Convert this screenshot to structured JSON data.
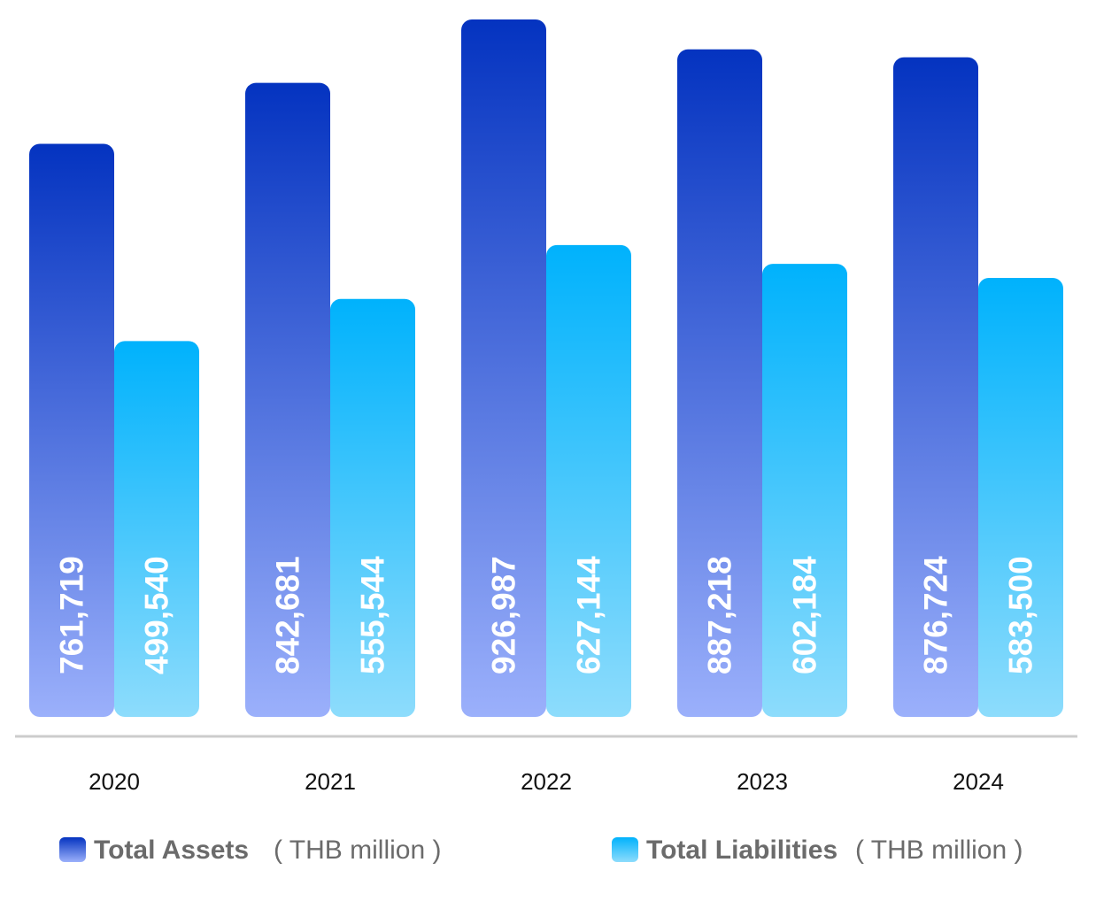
{
  "chart_data": {
    "type": "bar",
    "categories": [
      "2020",
      "2021",
      "2022",
      "2023",
      "2024"
    ],
    "series": [
      {
        "name": "Total Assets",
        "unit": "( THB million )",
        "values": [
          761719,
          842681,
          926987,
          887218,
          876724
        ],
        "labels": [
          "761,719",
          "842,681",
          "926,987",
          "887,218",
          "876,724"
        ],
        "color_top": "#0433c0",
        "color_bottom": "#9bb0fb"
      },
      {
        "name": "Total Liabilities",
        "unit": "( THB million )",
        "values": [
          499540,
          555544,
          627144,
          602184,
          583500
        ],
        "labels": [
          "499,540",
          "555,544",
          "627,144",
          "602,184",
          "583,500"
        ],
        "color_top": "#00b2fc",
        "color_bottom": "#8ddcfc"
      }
    ],
    "ylim": [
      0,
      926987
    ],
    "grid": false,
    "legend_position": "bottom",
    "axis_color": "#cccccc"
  }
}
